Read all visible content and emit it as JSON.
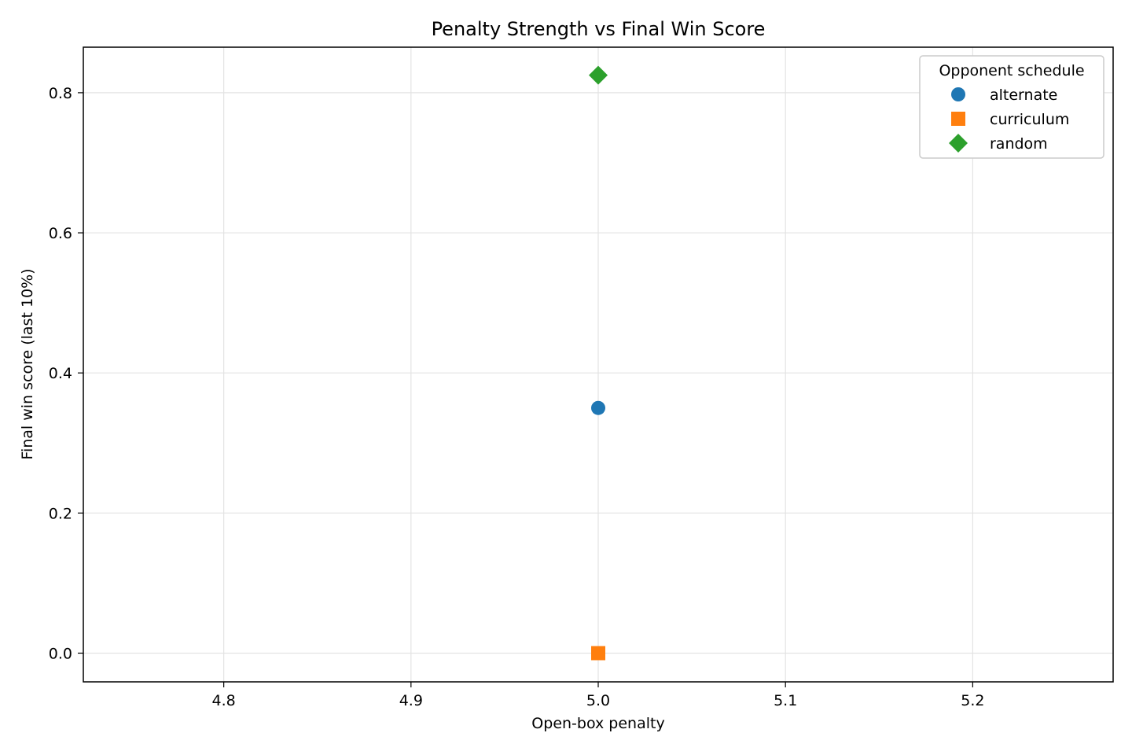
{
  "chart_data": {
    "type": "scatter",
    "title": "Penalty Strength vs Final Win Score",
    "xlabel": "Open-box penalty",
    "ylabel": "Final win score (last 10%)",
    "xlim": [
      4.725,
      5.275
    ],
    "ylim": [
      -0.041,
      0.865
    ],
    "xticks": [
      4.8,
      4.9,
      5.0,
      5.1,
      5.2
    ],
    "xtick_labels": [
      "4.8",
      "4.9",
      "5.0",
      "5.1",
      "5.2"
    ],
    "yticks": [
      0.0,
      0.2,
      0.4,
      0.6,
      0.8
    ],
    "ytick_labels": [
      "0.0",
      "0.2",
      "0.4",
      "0.6",
      "0.8"
    ],
    "grid": true,
    "legend": {
      "title": "Opponent schedule",
      "placement": "top-right"
    },
    "series": [
      {
        "name": "alternate",
        "marker": "circle",
        "color": "#1f77b4",
        "x": [
          5.0
        ],
        "y": [
          0.35
        ]
      },
      {
        "name": "curriculum",
        "marker": "square",
        "color": "#ff7f0e",
        "x": [
          5.0
        ],
        "y": [
          0.0
        ]
      },
      {
        "name": "random",
        "marker": "diamond",
        "color": "#2ca02c",
        "x": [
          5.0
        ],
        "y": [
          0.825
        ]
      }
    ]
  }
}
